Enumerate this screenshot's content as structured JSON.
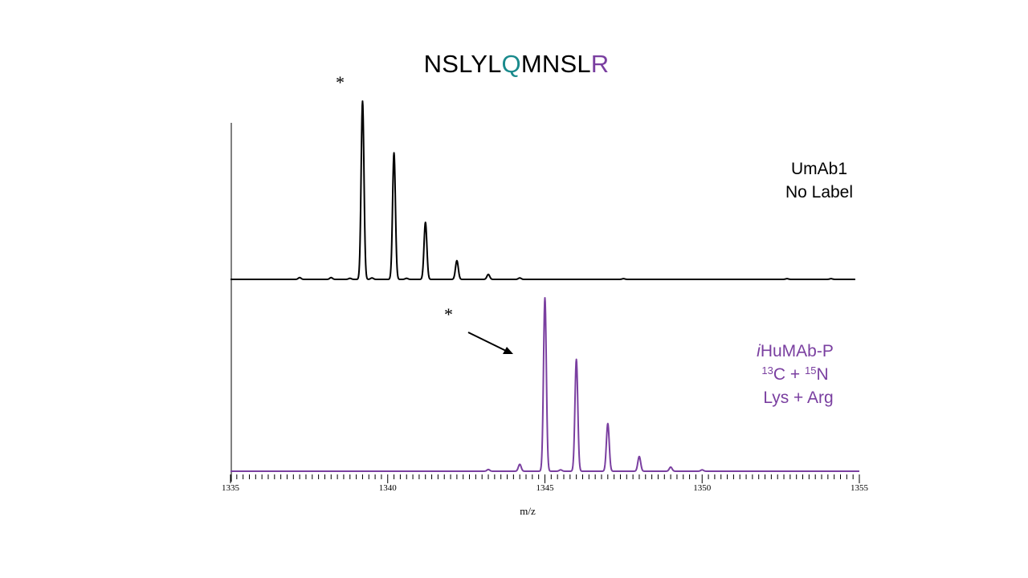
{
  "title": {
    "segments": [
      {
        "text": "NSLYL",
        "color": "#000000"
      },
      {
        "text": "Q",
        "color": "#1a8a8c"
      },
      {
        "text": "MNSL",
        "color": "#000000"
      },
      {
        "text": "R",
        "color": "#7a3fa0"
      }
    ]
  },
  "annotations": {
    "top_line1": "UmAb1",
    "top_line2": "No Label",
    "bottom_italic": "i",
    "bottom_name": "HuMAb-P",
    "bottom_iso_c_mass": "13",
    "bottom_iso_c": "C + ",
    "bottom_iso_n_mass": "15",
    "bottom_iso_n": "N",
    "bottom_line3": "Lys + Arg",
    "asterisk": "*"
  },
  "chart_data": {
    "type": "line",
    "xlabel": "m/z",
    "xlim": [
      1335,
      1355
    ],
    "xticks": [
      1335,
      1340,
      1345,
      1350,
      1355
    ],
    "grid": false,
    "series": [
      {
        "name": "UmAb1 No Label",
        "color": "#000000",
        "peaks": [
          {
            "mz": 1337.2,
            "rel": 0.01
          },
          {
            "mz": 1338.2,
            "rel": 0.01
          },
          {
            "mz": 1338.8,
            "rel": 0.006
          },
          {
            "mz": 1339.2,
            "rel": 1.0
          },
          {
            "mz": 1339.5,
            "rel": 0.008
          },
          {
            "mz": 1340.2,
            "rel": 0.71
          },
          {
            "mz": 1340.6,
            "rel": 0.006
          },
          {
            "mz": 1341.2,
            "rel": 0.32
          },
          {
            "mz": 1342.2,
            "rel": 0.105
          },
          {
            "mz": 1343.2,
            "rel": 0.028
          },
          {
            "mz": 1344.2,
            "rel": 0.008
          },
          {
            "mz": 1347.5,
            "rel": 0.004
          },
          {
            "mz": 1352.7,
            "rel": 0.004
          },
          {
            "mz": 1354.1,
            "rel": 0.004
          }
        ]
      },
      {
        "name": "iHuMAb-P 13C + 15N Lys + Arg",
        "color": "#7a3fa0",
        "peaks": [
          {
            "mz": 1343.2,
            "rel": 0.01
          },
          {
            "mz": 1344.2,
            "rel": 0.04
          },
          {
            "mz": 1345.0,
            "rel": 1.0
          },
          {
            "mz": 1345.5,
            "rel": 0.008
          },
          {
            "mz": 1346.0,
            "rel": 0.645
          },
          {
            "mz": 1347.0,
            "rel": 0.275
          },
          {
            "mz": 1348.0,
            "rel": 0.085
          },
          {
            "mz": 1349.0,
            "rel": 0.024
          },
          {
            "mz": 1350.0,
            "rel": 0.008
          }
        ]
      }
    ]
  }
}
